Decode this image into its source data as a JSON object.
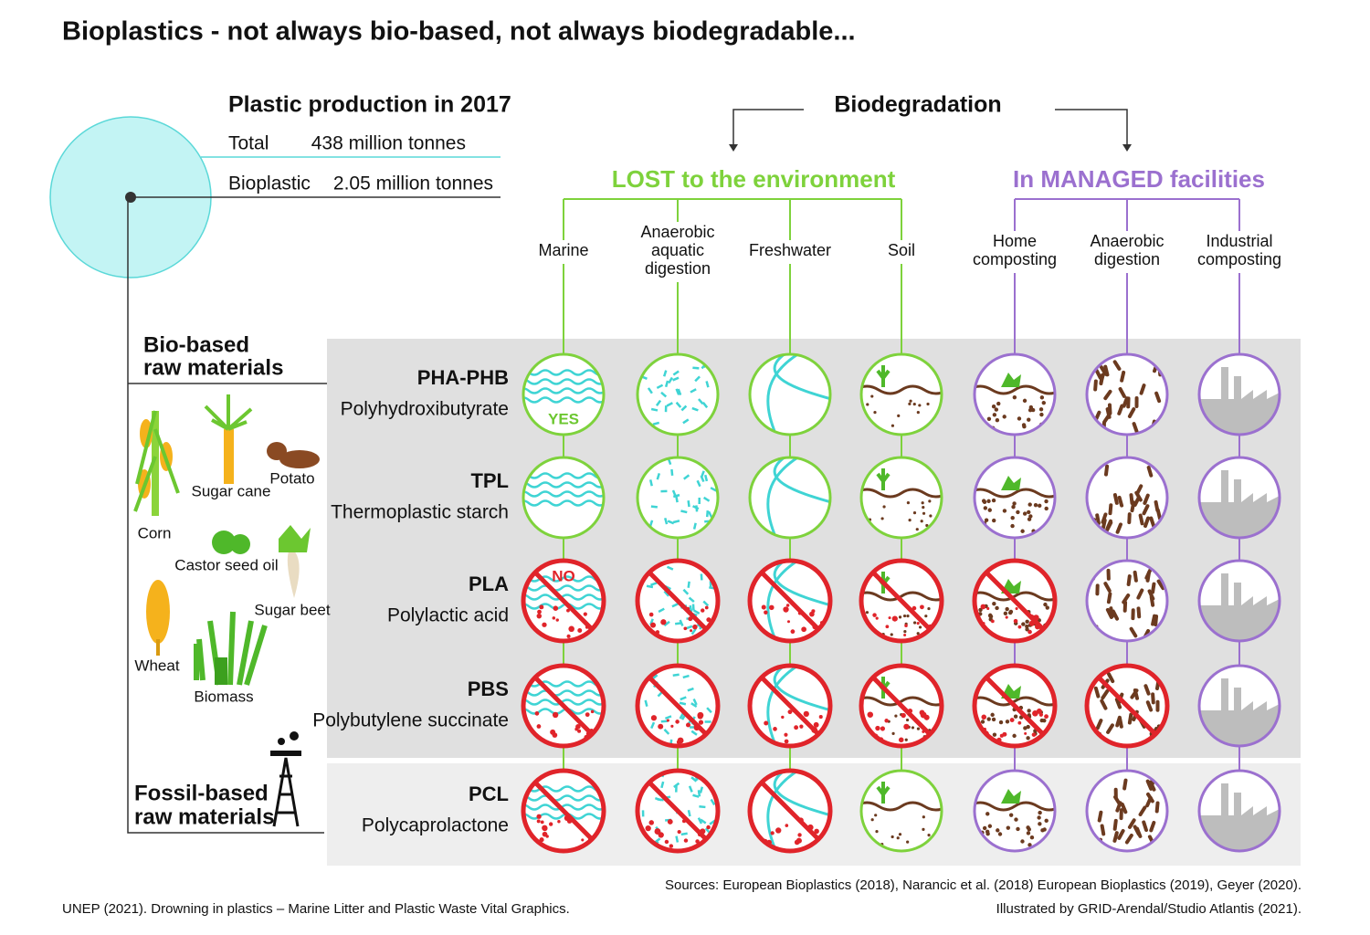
{
  "title": "Bioplastics - not always bio-based, not always biodegradable...",
  "production": {
    "title": "Plastic production in 2017",
    "rows": [
      {
        "label": "Total",
        "value": "438 million tonnes"
      },
      {
        "label": "Bioplastic",
        "value": "2.05 million tonnes"
      }
    ]
  },
  "raw_materials": {
    "bio_based": [
      "Bio-based",
      "raw materials"
    ],
    "fossil_based": [
      "Fossil-based",
      "raw materials"
    ],
    "crops": [
      "Corn",
      "Sugar cane",
      "Potato",
      "Castor seed oil",
      "Sugar beet",
      "Wheat",
      "Biomass"
    ]
  },
  "biodegradation": {
    "title": "Biodegradation",
    "groups": [
      {
        "title": "LOST to the environment",
        "color": "#7ed23c",
        "environments": [
          [
            "Marine"
          ],
          [
            "Anaerobic",
            "aquatic",
            "digestion"
          ],
          [
            "Freshwater"
          ],
          [
            "Soil"
          ]
        ]
      },
      {
        "title": "In MANAGED facilities",
        "color": "#9b70cf",
        "environments": [
          [
            "Home",
            "composting"
          ],
          [
            "Anaerobic",
            "digestion"
          ],
          [
            "Industrial",
            "composting"
          ]
        ]
      }
    ]
  },
  "yes_label": "YES",
  "no_label": "NO",
  "materials": [
    {
      "code": "PHA-PHB",
      "name": "Polyhydroxibutyrate",
      "biodegradable": [
        true,
        true,
        true,
        true,
        true,
        true,
        true
      ]
    },
    {
      "code": "TPL",
      "name": "Thermoplastic starch",
      "biodegradable": [
        true,
        true,
        true,
        true,
        true,
        true,
        true
      ]
    },
    {
      "code": "PLA",
      "name": "Polylactic acid",
      "biodegradable": [
        false,
        false,
        false,
        false,
        false,
        true,
        true
      ]
    },
    {
      "code": "PBS",
      "name": "Polybutylene succinate",
      "biodegradable": [
        false,
        false,
        false,
        false,
        false,
        false,
        true
      ]
    },
    {
      "code": "PCL",
      "name": "Polycaprolactone",
      "biodegradable": [
        false,
        false,
        false,
        true,
        true,
        true,
        true
      ]
    }
  ],
  "sources": [
    "Sources: European Bioplastics (2018), Narancic et al. (2018) European Bioplastics (2019), Geyer (2020).",
    "Illustrated by GRID-Arendal/Studio Atlantis (2021)."
  ],
  "credit": "UNEP (2021). Drowning in plastics – Marine Litter and Plastic Waste Vital Graphics."
}
